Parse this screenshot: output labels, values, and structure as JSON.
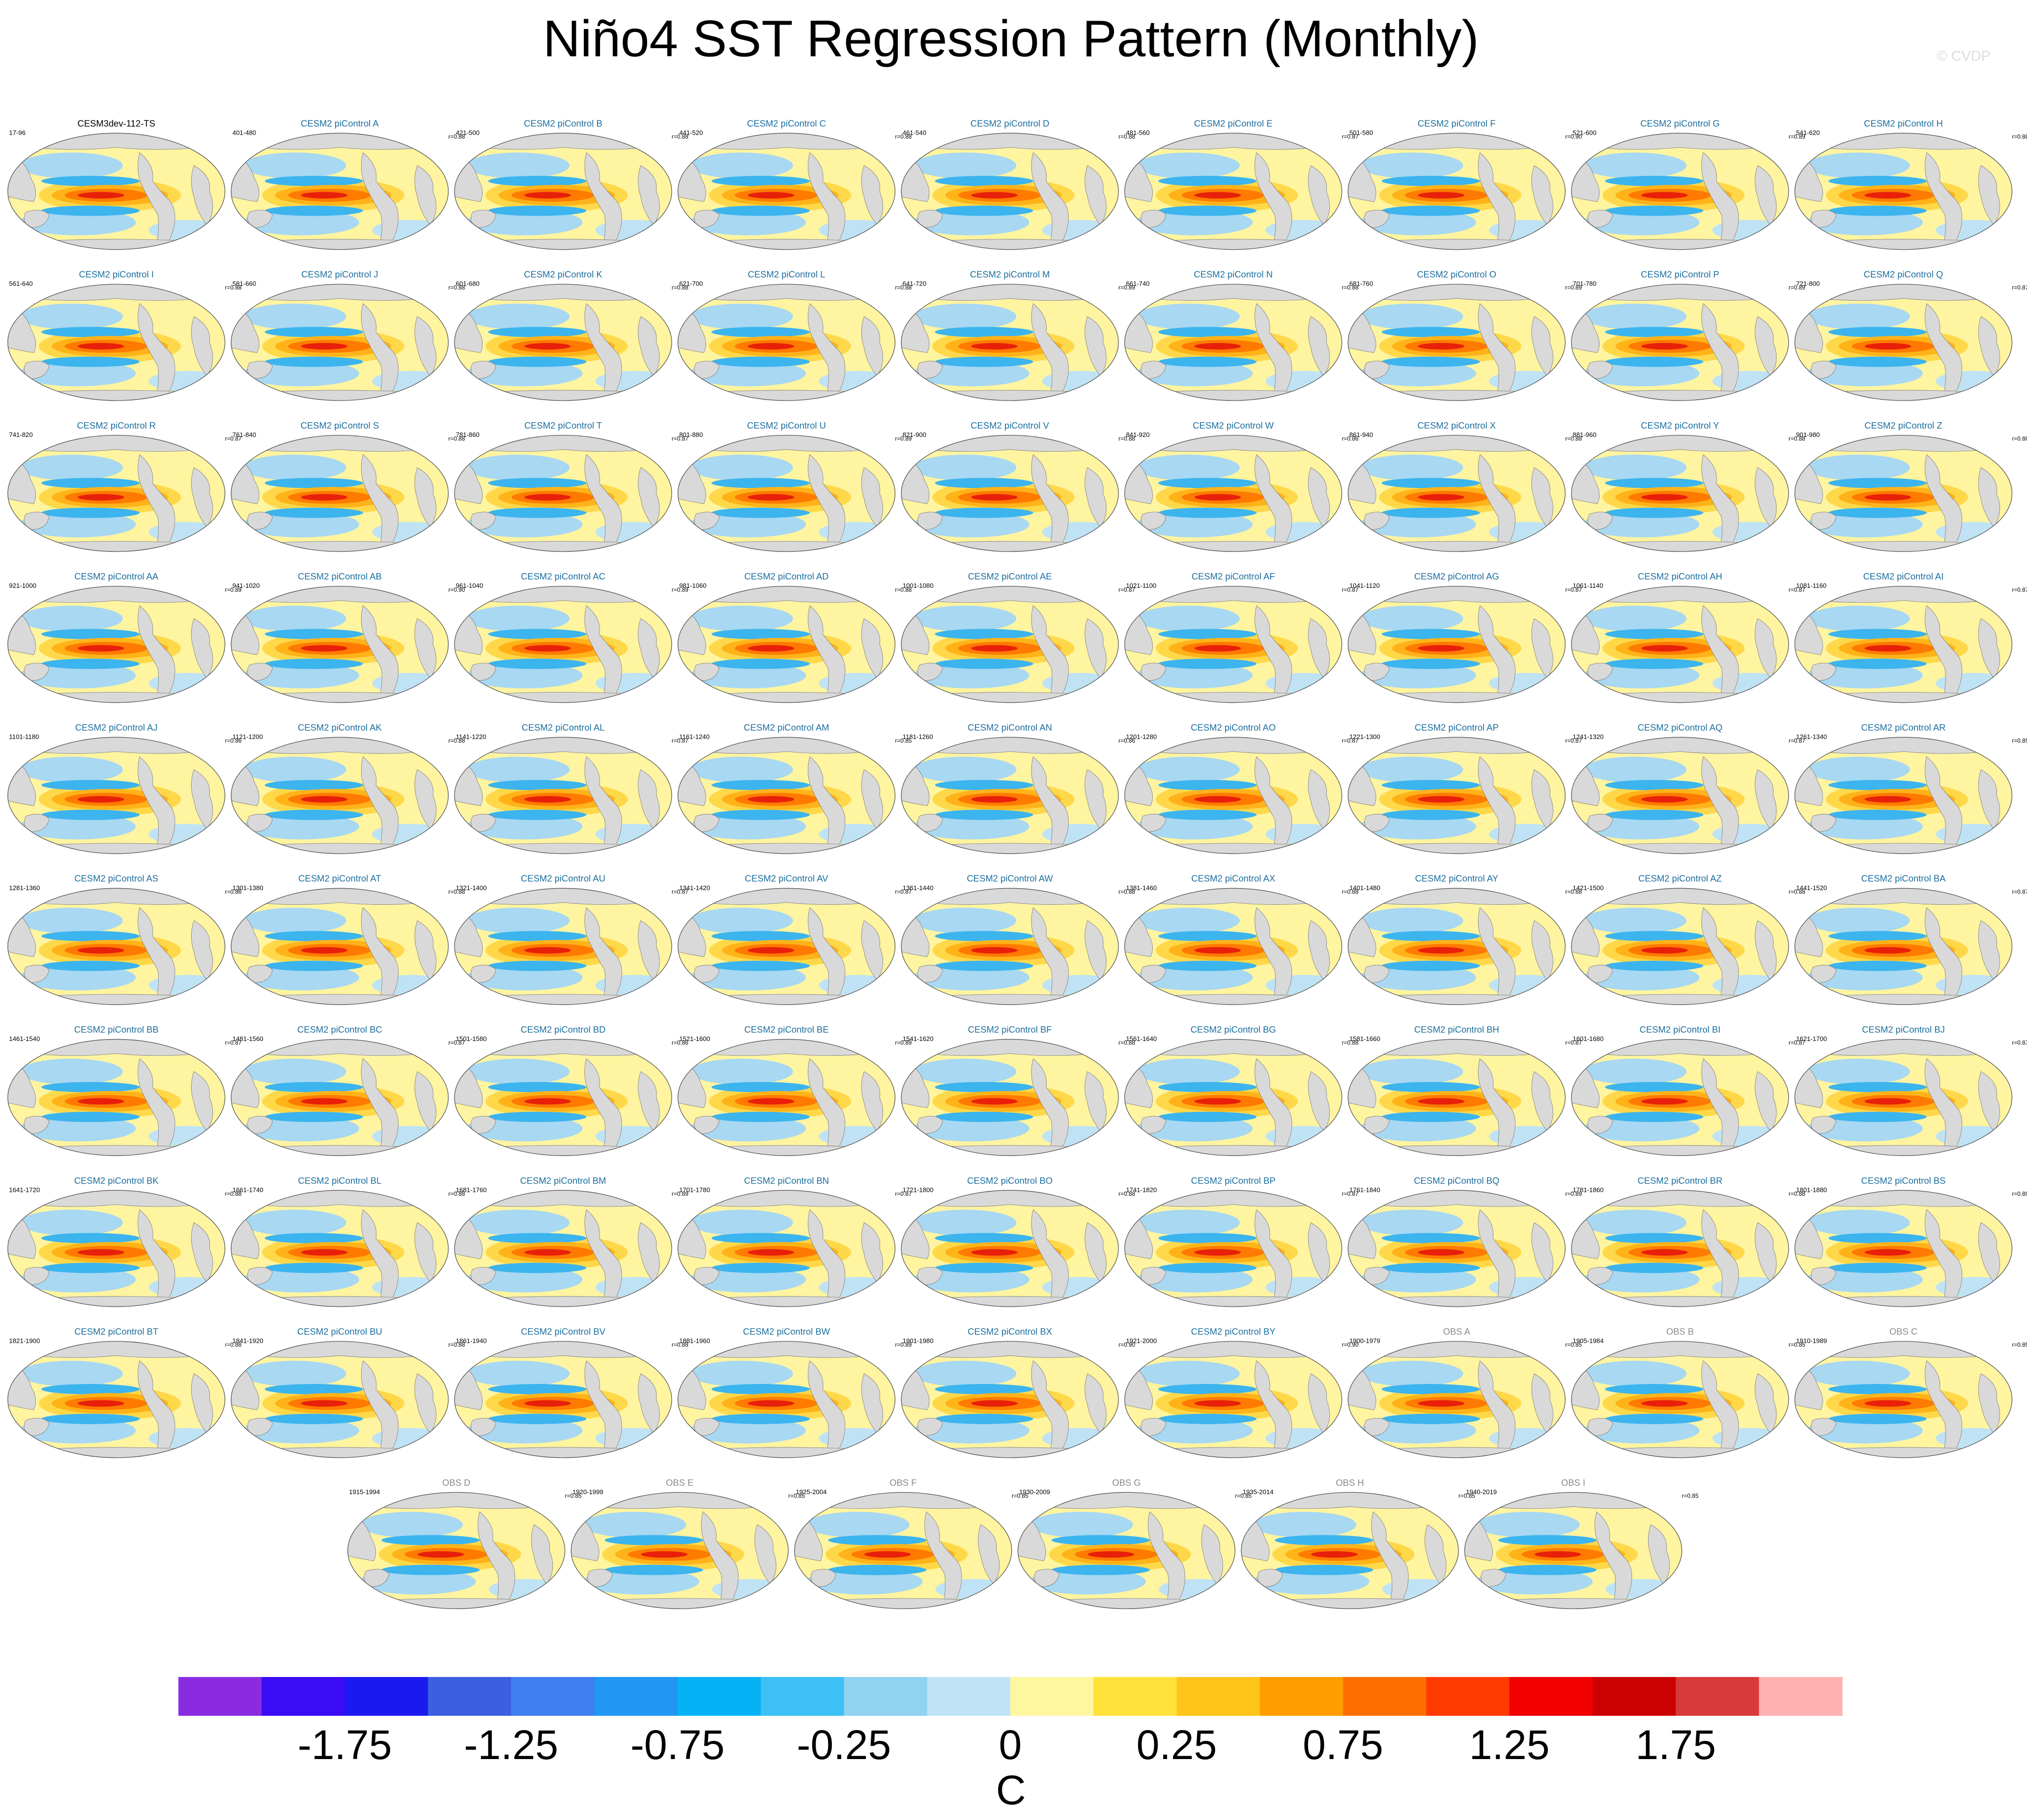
{
  "title": "Niño4 SST Regression Pattern (Monthly)",
  "watermark": "© CVDP",
  "panels": [
    {
      "title": "CESM3dev-112-TS",
      "years": "17-96",
      "color": "#000000"
    },
    {
      "title": "CESM2 piControl A",
      "years": "401-480",
      "corr": "r=0.88",
      "color": "#1b6e9e"
    },
    {
      "title": "CESM2 piControl B",
      "years": "421-500",
      "corr": "r=0.88",
      "color": "#1b6e9e"
    },
    {
      "title": "CESM2 piControl C",
      "years": "441-520",
      "corr": "r=0.88",
      "color": "#1b6e9e"
    },
    {
      "title": "CESM2 piControl D",
      "years": "461-540",
      "corr": "r=0.88",
      "color": "#1b6e9e"
    },
    {
      "title": "CESM2 piControl E",
      "years": "481-560",
      "corr": "r=0.87",
      "color": "#1b6e9e"
    },
    {
      "title": "CESM2 piControl F",
      "years": "501-580",
      "corr": "r=0.90",
      "color": "#1b6e9e"
    },
    {
      "title": "CESM2 piControl G",
      "years": "521-600",
      "corr": "r=0.89",
      "color": "#1b6e9e"
    },
    {
      "title": "CESM2 piControl H",
      "years": "541-620",
      "corr": "r=0.88",
      "color": "#1b6e9e"
    },
    {
      "title": "CESM2 piControl I",
      "years": "561-640",
      "corr": "r=0.88",
      "color": "#1b6e9e"
    },
    {
      "title": "CESM2 piControl J",
      "years": "581-660",
      "corr": "r=0.88",
      "color": "#1b6e9e"
    },
    {
      "title": "CESM2 piControl K",
      "years": "601-680",
      "corr": "r=0.88",
      "color": "#1b6e9e"
    },
    {
      "title": "CESM2 piControl L",
      "years": "621-700",
      "corr": "r=0.88",
      "color": "#1b6e9e"
    },
    {
      "title": "CESM2 piControl M",
      "years": "641-720",
      "corr": "r=0.89",
      "color": "#1b6e9e"
    },
    {
      "title": "CESM2 piControl N",
      "years": "661-740",
      "corr": "r=0.88",
      "color": "#1b6e9e"
    },
    {
      "title": "CESM2 piControl O",
      "years": "681-760",
      "corr": "r=0.89",
      "color": "#1b6e9e"
    },
    {
      "title": "CESM2 piControl P",
      "years": "701-780",
      "corr": "r=0.89",
      "color": "#1b6e9e"
    },
    {
      "title": "CESM2 piControl Q",
      "years": "721-800",
      "corr": "r=0.87",
      "color": "#1b6e9e"
    },
    {
      "title": "CESM2 piControl R",
      "years": "741-820",
      "corr": "r=0.87",
      "color": "#1b6e9e"
    },
    {
      "title": "CESM2 piControl S",
      "years": "761-840",
      "corr": "r=0.88",
      "color": "#1b6e9e"
    },
    {
      "title": "CESM2 piControl T",
      "years": "781-860",
      "corr": "r=0.87",
      "color": "#1b6e9e"
    },
    {
      "title": "CESM2 piControl U",
      "years": "801-880",
      "corr": "r=0.89",
      "color": "#1b6e9e"
    },
    {
      "title": "CESM2 piControl V",
      "years": "821-900",
      "corr": "r=0.88",
      "color": "#1b6e9e"
    },
    {
      "title": "CESM2 piControl W",
      "years": "841-920",
      "corr": "r=0.86",
      "color": "#1b6e9e"
    },
    {
      "title": "CESM2 piControl X",
      "years": "861-940",
      "corr": "r=0.88",
      "color": "#1b6e9e"
    },
    {
      "title": "CESM2 piControl Y",
      "years": "881-960",
      "corr": "r=0.88",
      "color": "#1b6e9e"
    },
    {
      "title": "CESM2 piControl Z",
      "years": "901-980",
      "corr": "r=0.88",
      "color": "#1b6e9e"
    },
    {
      "title": "CESM2 piControl AA",
      "years": "921-1000",
      "corr": "r=0.89",
      "color": "#1b6e9e"
    },
    {
      "title": "CESM2 piControl AB",
      "years": "941-1020",
      "corr": "r=0.90",
      "color": "#1b6e9e"
    },
    {
      "title": "CESM2 piControl AC",
      "years": "961-1040",
      "corr": "r=0.89",
      "color": "#1b6e9e"
    },
    {
      "title": "CESM2 piControl AD",
      "years": "981-1060",
      "corr": "r=0.88",
      "color": "#1b6e9e"
    },
    {
      "title": "CESM2 piControl AE",
      "years": "1001-1080",
      "corr": "r=0.87",
      "color": "#1b6e9e"
    },
    {
      "title": "CESM2 piControl AF",
      "years": "1021-1100",
      "corr": "r=0.87",
      "color": "#1b6e9e"
    },
    {
      "title": "CESM2 piControl AG",
      "years": "1041-1120",
      "corr": "r=0.87",
      "color": "#1b6e9e"
    },
    {
      "title": "CESM2 piControl AH",
      "years": "1061-1140",
      "corr": "r=0.87",
      "color": "#1b6e9e"
    },
    {
      "title": "CESM2 piControl AI",
      "years": "1081-1160",
      "corr": "r=0.87",
      "color": "#1b6e9e"
    },
    {
      "title": "CESM2 piControl AJ",
      "years": "1101-1180",
      "corr": "r=0.86",
      "color": "#1b6e9e"
    },
    {
      "title": "CESM2 piControl AK",
      "years": "1121-1200",
      "corr": "r=0.88",
      "color": "#1b6e9e"
    },
    {
      "title": "CESM2 piControl AL",
      "years": "1141-1220",
      "corr": "r=0.87",
      "color": "#1b6e9e"
    },
    {
      "title": "CESM2 piControl AM",
      "years": "1161-1240",
      "corr": "r=0.85",
      "color": "#1b6e9e"
    },
    {
      "title": "CESM2 piControl AN",
      "years": "1181-1260",
      "corr": "r=0.86",
      "color": "#1b6e9e"
    },
    {
      "title": "CESM2 piControl AO",
      "years": "1201-1280",
      "corr": "r=0.87",
      "color": "#1b6e9e"
    },
    {
      "title": "CESM2 piControl AP",
      "years": "1221-1300",
      "corr": "r=0.87",
      "color": "#1b6e9e"
    },
    {
      "title": "CESM2 piControl AQ",
      "years": "1241-1320",
      "corr": "r=0.87",
      "color": "#1b6e9e"
    },
    {
      "title": "CESM2 piControl AR",
      "years": "1261-1340",
      "corr": "r=0.85",
      "color": "#1b6e9e"
    },
    {
      "title": "CESM2 piControl AS",
      "years": "1281-1360",
      "corr": "r=0.86",
      "color": "#1b6e9e"
    },
    {
      "title": "CESM2 piControl AT",
      "years": "1301-1380",
      "corr": "r=0.88",
      "color": "#1b6e9e"
    },
    {
      "title": "CESM2 piControl AU",
      "years": "1321-1400",
      "corr": "r=0.87",
      "color": "#1b6e9e"
    },
    {
      "title": "CESM2 piControl AV",
      "years": "1341-1420",
      "corr": "r=0.87",
      "color": "#1b6e9e"
    },
    {
      "title": "CESM2 piControl AW",
      "years": "1361-1440",
      "corr": "r=0.88",
      "color": "#1b6e9e"
    },
    {
      "title": "CESM2 piControl AX",
      "years": "1381-1460",
      "corr": "r=0.88",
      "color": "#1b6e9e"
    },
    {
      "title": "CESM2 piControl AY",
      "years": "1401-1480",
      "corr": "r=0.88",
      "color": "#1b6e9e"
    },
    {
      "title": "CESM2 piControl AZ",
      "years": "1421-1500",
      "corr": "r=0.88",
      "color": "#1b6e9e"
    },
    {
      "title": "CESM2 piControl BA",
      "years": "1441-1520",
      "corr": "r=0.87",
      "color": "#1b6e9e"
    },
    {
      "title": "CESM2 piControl BB",
      "years": "1461-1540",
      "corr": "r=0.87",
      "color": "#1b6e9e"
    },
    {
      "title": "CESM2 piControl BC",
      "years": "1481-1560",
      "corr": "r=0.87",
      "color": "#1b6e9e"
    },
    {
      "title": "CESM2 piControl BD",
      "years": "1501-1580",
      "corr": "r=0.86",
      "color": "#1b6e9e"
    },
    {
      "title": "CESM2 piControl BE",
      "years": "1521-1600",
      "corr": "r=0.89",
      "color": "#1b6e9e"
    },
    {
      "title": "CESM2 piControl BF",
      "years": "1541-1620",
      "corr": "r=0.88",
      "color": "#1b6e9e"
    },
    {
      "title": "CESM2 piControl BG",
      "years": "1561-1640",
      "corr": "r=0.88",
      "color": "#1b6e9e"
    },
    {
      "title": "CESM2 piControl BH",
      "years": "1581-1660",
      "corr": "r=0.87",
      "color": "#1b6e9e"
    },
    {
      "title": "CESM2 piControl BI",
      "years": "1601-1680",
      "corr": "r=0.87",
      "color": "#1b6e9e"
    },
    {
      "title": "CESM2 piControl BJ",
      "years": "1621-1700",
      "corr": "r=0.87",
      "color": "#1b6e9e"
    },
    {
      "title": "CESM2 piControl BK",
      "years": "1641-1720",
      "corr": "r=0.88",
      "color": "#1b6e9e"
    },
    {
      "title": "CESM2 piControl BL",
      "years": "1661-1740",
      "corr": "r=0.88",
      "color": "#1b6e9e"
    },
    {
      "title": "CESM2 piControl BM",
      "years": "1681-1760",
      "corr": "r=0.89",
      "color": "#1b6e9e"
    },
    {
      "title": "CESM2 piControl BN",
      "years": "1701-1780",
      "corr": "r=0.87",
      "color": "#1b6e9e"
    },
    {
      "title": "CESM2 piControl BO",
      "years": "1721-1800",
      "corr": "r=0.88",
      "color": "#1b6e9e"
    },
    {
      "title": "CESM2 piControl BP",
      "years": "1741-1820",
      "corr": "r=0.87",
      "color": "#1b6e9e"
    },
    {
      "title": "CESM2 piControl BQ",
      "years": "1761-1840",
      "corr": "r=0.89",
      "color": "#1b6e9e"
    },
    {
      "title": "CESM2 piControl BR",
      "years": "1781-1860",
      "corr": "r=0.88",
      "color": "#1b6e9e"
    },
    {
      "title": "CESM2 piControl BS",
      "years": "1801-1880",
      "corr": "r=0.89",
      "color": "#1b6e9e"
    },
    {
      "title": "CESM2 piControl BT",
      "years": "1821-1900",
      "corr": "r=0.88",
      "color": "#1b6e9e"
    },
    {
      "title": "CESM2 piControl BU",
      "years": "1841-1920",
      "corr": "r=0.88",
      "color": "#1b6e9e"
    },
    {
      "title": "CESM2 piControl BV",
      "years": "1861-1940",
      "corr": "r=0.88",
      "color": "#1b6e9e"
    },
    {
      "title": "CESM2 piControl BW",
      "years": "1881-1960",
      "corr": "r=0.89",
      "color": "#1b6e9e"
    },
    {
      "title": "CESM2 piControl BX",
      "years": "1901-1980",
      "corr": "r=0.90",
      "color": "#1b6e9e"
    },
    {
      "title": "CESM2 piControl BY",
      "years": "1921-2000",
      "corr": "r=0.90",
      "color": "#1b6e9e"
    },
    {
      "title": "OBS A",
      "years": "1900-1979",
      "corr": "r=0.85",
      "color": "#8a8a8a"
    },
    {
      "title": "OBS B",
      "years": "1905-1984",
      "corr": "r=0.85",
      "color": "#8a8a8a"
    },
    {
      "title": "OBS C",
      "years": "1910-1989",
      "corr": "r=0.85",
      "color": "#8a8a8a"
    },
    {
      "title": "OBS D",
      "years": "1915-1994",
      "corr": "r=0.85",
      "color": "#8a8a8a"
    },
    {
      "title": "OBS E",
      "years": "1920-1999",
      "corr": "r=0.85",
      "color": "#8a8a8a"
    },
    {
      "title": "OBS F",
      "years": "1925-2004",
      "corr": "r=0.85",
      "color": "#8a8a8a"
    },
    {
      "title": "OBS G",
      "years": "1930-2009",
      "corr": "r=0.85",
      "color": "#8a8a8a"
    },
    {
      "title": "OBS H",
      "years": "1935-2014",
      "corr": "r=0.85",
      "color": "#8a8a8a"
    },
    {
      "title": "OBS I",
      "years": "1940-2019",
      "corr": "r=0.85",
      "color": "#8a8a8a"
    }
  ],
  "colorbar": {
    "label": "C",
    "colors": [
      "#8a2be2",
      "#3a0cf5",
      "#1a1af0",
      "#3a5fe0",
      "#3f7ff0",
      "#2196f3",
      "#06b2f5",
      "#3cc0f5",
      "#90d2f0",
      "#bfe3f5",
      "#fff7a0",
      "#ffe13a",
      "#ffc41a",
      "#ff9e00",
      "#ff6f00",
      "#ff3a00",
      "#f20000",
      "#cc0000",
      "#d83a3a",
      "#ffb0b0"
    ],
    "levels": [
      -2,
      -1.75,
      -1.5,
      -1.25,
      -1,
      -0.75,
      -0.5,
      -0.25,
      -0.1,
      0,
      0.1,
      0.25,
      0.5,
      0.75,
      1,
      1.25,
      1.5,
      1.75,
      2
    ],
    "ticks": [
      -1.75,
      -1.25,
      -0.75,
      -0.25,
      0,
      0.25,
      0.75,
      1.25,
      1.75
    ]
  }
}
